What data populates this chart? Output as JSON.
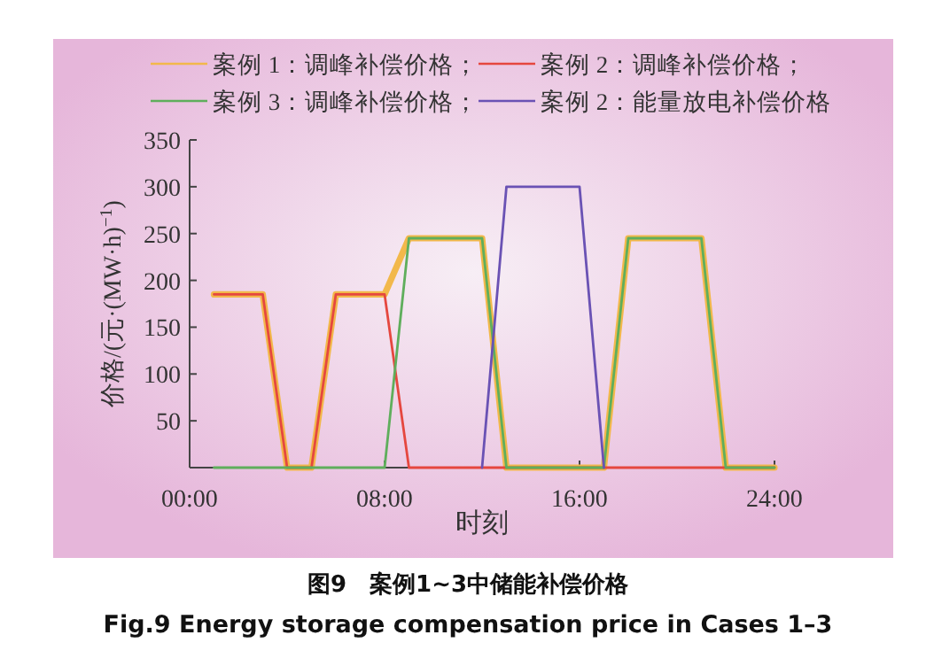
{
  "chart_data": {
    "type": "line",
    "title": "图9　案例1~3中储能补偿价格",
    "subtitle": "Fig.9  Energy storage compensation price in Cases 1–3",
    "xlabel": "时刻",
    "ylabel": "价格/(元·(MW·h)$^{−1}$)",
    "xlim": [
      0,
      24
    ],
    "xticks": [
      {
        "value": 0,
        "label": "00:00"
      },
      {
        "value": 8,
        "label": "08:00"
      },
      {
        "value": 16,
        "label": "16:00"
      },
      {
        "value": 24,
        "label": "24:00"
      }
    ],
    "ylim": [
      0,
      350
    ],
    "yticks": [
      50,
      100,
      150,
      200,
      250,
      300,
      350
    ],
    "grid": false,
    "legend": "top",
    "marker": "none",
    "line_style": "solid",
    "series": [
      {
        "name": "案例 1：调峰补偿价格；",
        "color": "#f2b84b",
        "x": [
          1,
          3,
          4,
          5,
          6,
          8,
          9,
          12,
          13,
          17,
          18,
          21,
          22,
          24
        ],
        "values": [
          185,
          185,
          0,
          0,
          185,
          185,
          245,
          245,
          0,
          0,
          245,
          245,
          0,
          0
        ]
      },
      {
        "name": "案例 2：调峰补偿价格；",
        "color": "#e5473f",
        "x": [
          1,
          3,
          4,
          5,
          6,
          8,
          9,
          24
        ],
        "values": [
          185,
          185,
          0,
          0,
          185,
          185,
          0,
          0
        ]
      },
      {
        "name": "案例 3：调峰补偿价格；",
        "color": "#5fae5c",
        "x": [
          1,
          8,
          9,
          12,
          13,
          17,
          18,
          21,
          22,
          24
        ],
        "values": [
          0,
          0,
          245,
          245,
          0,
          0,
          245,
          245,
          0,
          0
        ]
      },
      {
        "name": "案例 2：能量放电补偿价格",
        "color": "#6a52b4",
        "x": [
          12,
          13,
          16,
          17
        ],
        "values": [
          0,
          300,
          300,
          0
        ]
      }
    ]
  }
}
